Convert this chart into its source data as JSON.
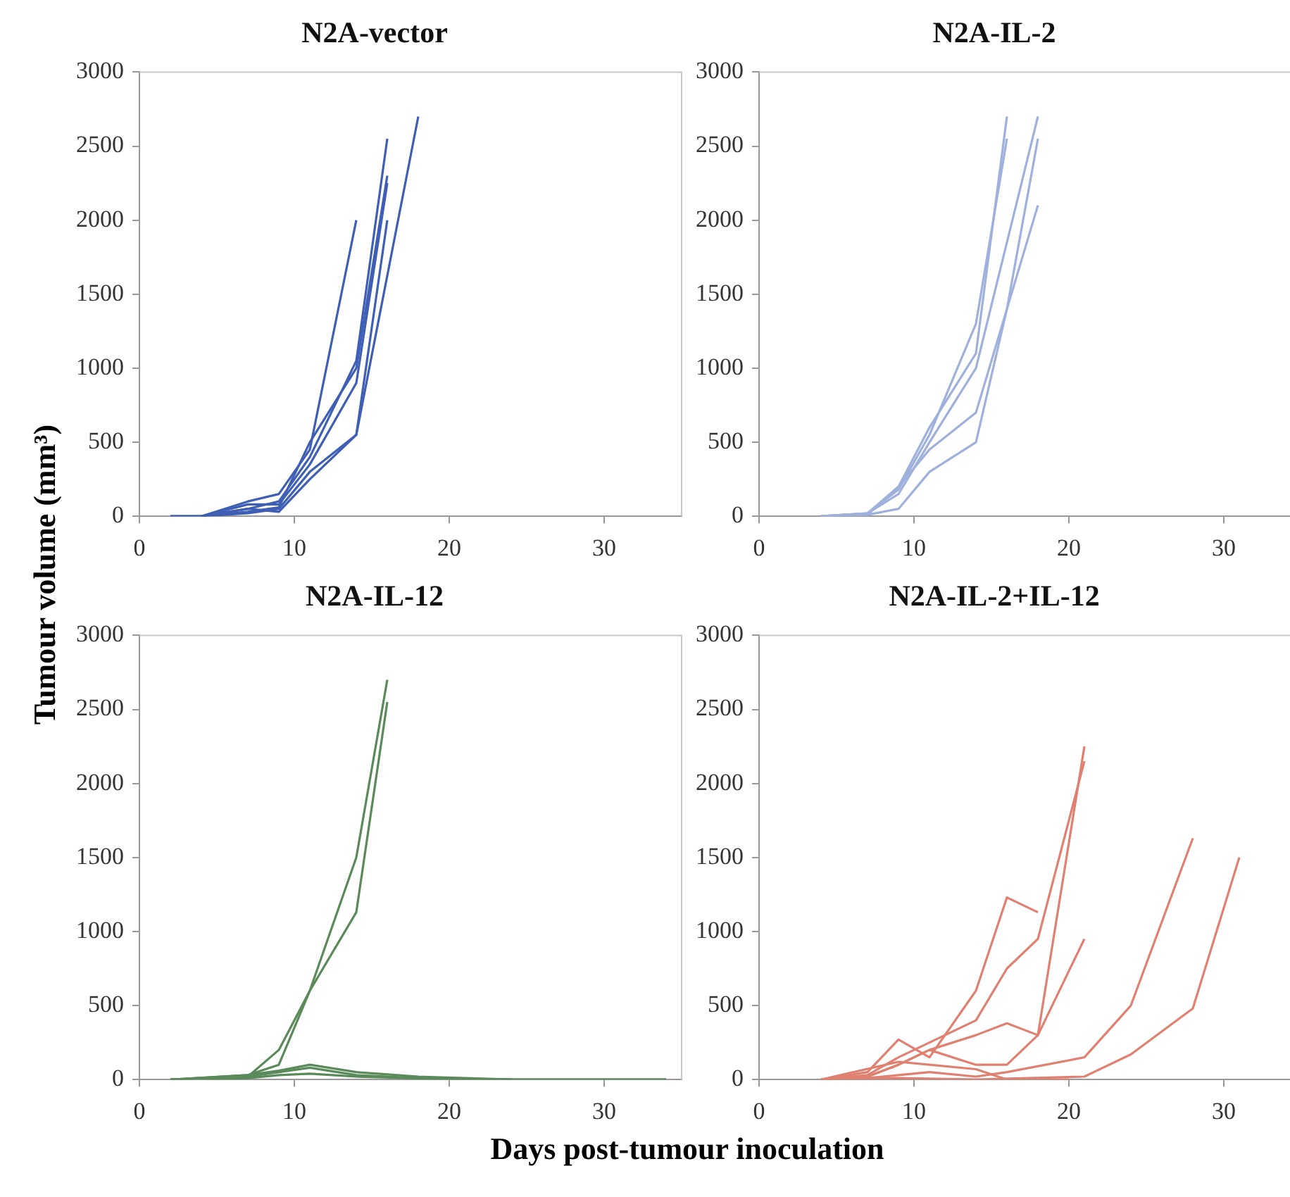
{
  "chart_data": [
    {
      "type": "line",
      "title": "N2A-vector",
      "ylabel": "Tumour volume (mm³)",
      "xlim": [
        0,
        35
      ],
      "xticks": [
        0,
        10,
        20,
        30
      ],
      "ylim": [
        0,
        3000
      ],
      "yticks": [
        0,
        500,
        1000,
        1500,
        2000,
        2500,
        3000
      ],
      "grid": false,
      "legend": false,
      "marker": "none",
      "line_style": "solid",
      "series": [
        {
          "color": "#3f5fb5",
          "x": [
            2,
            4,
            7,
            9,
            11,
            14,
            18
          ],
          "values": [
            0,
            0,
            20,
            50,
            300,
            550,
            2700
          ]
        },
        {
          "color": "#3f5fb5",
          "x": [
            2,
            4,
            7,
            9,
            11,
            14,
            16
          ],
          "values": [
            0,
            0,
            50,
            100,
            400,
            1050,
            2550
          ]
        },
        {
          "color": "#3f5fb5",
          "x": [
            4,
            7,
            9,
            11,
            14
          ],
          "values": [
            0,
            100,
            150,
            450,
            2000
          ]
        },
        {
          "color": "#3f5fb5",
          "x": [
            4,
            7,
            9,
            11,
            14,
            16
          ],
          "values": [
            0,
            30,
            60,
            500,
            1000,
            2300
          ]
        },
        {
          "color": "#3f5fb5",
          "x": [
            4,
            7,
            9,
            11,
            14,
            16
          ],
          "values": [
            0,
            80,
            80,
            350,
            900,
            2250
          ]
        },
        {
          "color": "#3f5fb5",
          "x": [
            4,
            7,
            9,
            11,
            14,
            16
          ],
          "values": [
            0,
            50,
            30,
            250,
            550,
            2000
          ]
        }
      ]
    },
    {
      "type": "line",
      "title": "N2A-IL-2",
      "xlim": [
        0,
        35
      ],
      "xticks": [
        0,
        10,
        20,
        30
      ],
      "ylim": [
        0,
        3000
      ],
      "yticks": [
        0,
        500,
        1000,
        1500,
        2000,
        2500,
        3000
      ],
      "grid": false,
      "legend": false,
      "marker": "none",
      "line_style": "solid",
      "series": [
        {
          "color": "#9fb0dd",
          "x": [
            4,
            7,
            9,
            11,
            14,
            16
          ],
          "values": [
            0,
            20,
            200,
            600,
            1100,
            2700
          ]
        },
        {
          "color": "#9fb0dd",
          "x": [
            4,
            7,
            9,
            11,
            14,
            16
          ],
          "values": [
            0,
            20,
            180,
            550,
            1300,
            2550
          ]
        },
        {
          "color": "#9fb0dd",
          "x": [
            4,
            7,
            9,
            11,
            14,
            18
          ],
          "values": [
            0,
            20,
            150,
            500,
            1000,
            2700
          ]
        },
        {
          "color": "#9fb0dd",
          "x": [
            4,
            7,
            9,
            11,
            14,
            16,
            18
          ],
          "values": [
            0,
            10,
            50,
            300,
            500,
            1400,
            2550
          ]
        },
        {
          "color": "#9fb0dd",
          "x": [
            4,
            7,
            9,
            11,
            14,
            18
          ],
          "values": [
            0,
            10,
            200,
            450,
            700,
            2100
          ]
        }
      ]
    },
    {
      "type": "line",
      "title": "N2A-IL-12",
      "xlabel": "Days post-tumour inoculation",
      "xlim": [
        0,
        35
      ],
      "xticks": [
        0,
        10,
        20,
        30
      ],
      "ylim": [
        0,
        3000
      ],
      "yticks": [
        0,
        500,
        1000,
        1500,
        2000,
        2500,
        3000
      ],
      "grid": false,
      "legend": false,
      "marker": "none",
      "line_style": "solid",
      "series": [
        {
          "color": "#5a8a5a",
          "x": [
            2,
            7,
            9,
            11,
            14,
            16
          ],
          "values": [
            0,
            20,
            200,
            600,
            1500,
            2700
          ]
        },
        {
          "color": "#5a8a5a",
          "x": [
            2,
            7,
            9,
            11,
            14,
            16
          ],
          "values": [
            0,
            30,
            100,
            600,
            1130,
            2550
          ]
        },
        {
          "color": "#5a8a5a",
          "x": [
            2,
            7,
            9,
            11,
            14,
            18,
            21,
            24,
            34
          ],
          "values": [
            0,
            30,
            60,
            100,
            50,
            20,
            10,
            0,
            0
          ]
        },
        {
          "color": "#5a8a5a",
          "x": [
            2,
            7,
            9,
            11,
            14,
            18,
            24
          ],
          "values": [
            0,
            20,
            50,
            80,
            30,
            10,
            0
          ]
        },
        {
          "color": "#5a8a5a",
          "x": [
            4,
            7,
            9,
            11,
            14,
            21,
            34
          ],
          "values": [
            0,
            10,
            30,
            40,
            20,
            0,
            0
          ]
        }
      ]
    },
    {
      "type": "line",
      "title": "N2A-IL-2+IL-12",
      "xlim": [
        0,
        35
      ],
      "xticks": [
        0,
        10,
        20,
        30
      ],
      "ylim": [
        0,
        3000
      ],
      "yticks": [
        0,
        500,
        1000,
        1500,
        2000,
        2500,
        3000
      ],
      "grid": false,
      "legend": false,
      "marker": "none",
      "line_style": "solid",
      "series": [
        {
          "color": "#e08070",
          "x": [
            4,
            7,
            9,
            11,
            14,
            16,
            18,
            21
          ],
          "values": [
            0,
            30,
            150,
            250,
            400,
            750,
            950,
            2150
          ]
        },
        {
          "color": "#e08070",
          "x": [
            4,
            7,
            9,
            11,
            14,
            16,
            18,
            21
          ],
          "values": [
            0,
            20,
            100,
            200,
            300,
            380,
            300,
            2250
          ]
        },
        {
          "color": "#e08070",
          "x": [
            4,
            7,
            9,
            11,
            14,
            16,
            18
          ],
          "values": [
            0,
            50,
            270,
            150,
            600,
            1230,
            1130
          ]
        },
        {
          "color": "#e08070",
          "x": [
            4,
            7,
            9,
            11,
            14,
            16,
            18,
            21
          ],
          "values": [
            0,
            20,
            100,
            200,
            100,
            100,
            300,
            950
          ]
        },
        {
          "color": "#e08070",
          "x": [
            4,
            7,
            9,
            11,
            14,
            16,
            21,
            24,
            28
          ],
          "values": [
            0,
            10,
            30,
            50,
            20,
            50,
            150,
            500,
            1630
          ]
        },
        {
          "color": "#e08070",
          "x": [
            4,
            9,
            14,
            21,
            24,
            28,
            31
          ],
          "values": [
            0,
            10,
            0,
            20,
            170,
            480,
            1500
          ]
        },
        {
          "color": "#e08070",
          "x": [
            4,
            9,
            11,
            14,
            16,
            20
          ],
          "values": [
            0,
            120,
            100,
            70,
            0,
            0
          ]
        }
      ]
    }
  ]
}
